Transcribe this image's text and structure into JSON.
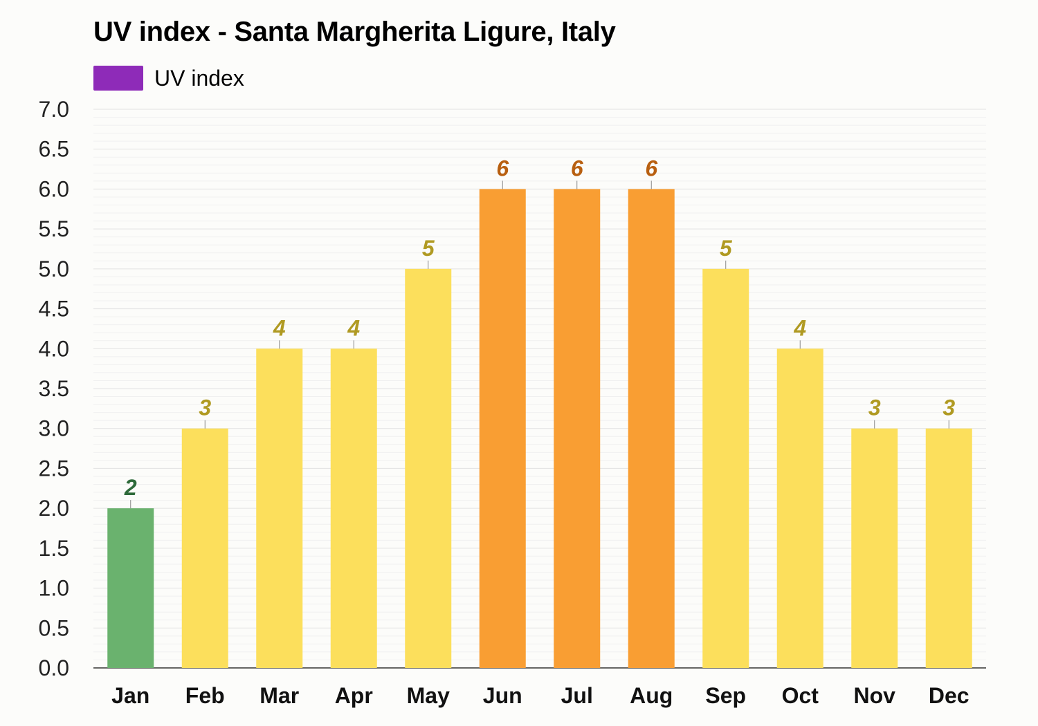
{
  "title": "UV index - Santa Margherita Ligure, Italy",
  "legend": {
    "label": "UV index",
    "color": "#8e2bb8"
  },
  "colors": {
    "low_bar": "#6ab26e",
    "low_label": "#2e6a3a",
    "moderate_bar": "#fcdf5c",
    "moderate_label": "#b09a22",
    "high_bar": "#f99e33",
    "high_label": "#b85f10",
    "axis": "#333333",
    "grid": "#e2e2e2"
  },
  "chart_data": {
    "type": "bar",
    "title": "UV index - Santa Margherita Ligure, Italy",
    "xlabel": "",
    "ylabel": "",
    "ylim": [
      0,
      7
    ],
    "ytick_labels": [
      "0.0",
      "0.5",
      "1.0",
      "1.5",
      "2.0",
      "2.5",
      "3.0",
      "3.5",
      "4.0",
      "4.5",
      "5.0",
      "5.5",
      "6.0",
      "6.5",
      "7.0"
    ],
    "categories": [
      "Jan",
      "Feb",
      "Mar",
      "Apr",
      "May",
      "Jun",
      "Jul",
      "Aug",
      "Sep",
      "Oct",
      "Nov",
      "Dec"
    ],
    "series": [
      {
        "name": "UV index",
        "values": [
          2,
          3,
          4,
          4,
          5,
          6,
          6,
          6,
          5,
          4,
          3,
          3
        ]
      }
    ],
    "data_labels": [
      "2",
      "3",
      "4",
      "4",
      "5",
      "6",
      "6",
      "6",
      "5",
      "4",
      "3",
      "3"
    ],
    "grid": true,
    "legend_position": "top-left"
  }
}
